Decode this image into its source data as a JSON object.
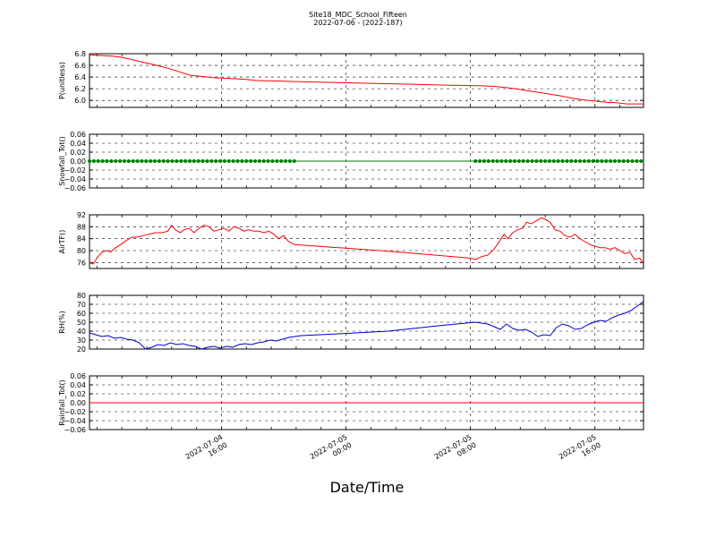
{
  "figure": {
    "title": "Site18_MDC_School_Fifteen",
    "subtitle": "2022-07-06 - (2022-187)",
    "xlabel": "Date/Time",
    "x_ticks": [
      "2022-07-04|16:00",
      "2022-07-05|00:00",
      "2022-07-05|08:00",
      "2022-07-05|16:00"
    ]
  },
  "chart_data": [
    {
      "type": "line",
      "ylabel": "P(unitless)",
      "ylim": [
        5.88,
        6.8
      ],
      "yticks": [
        "6.8",
        "6.6",
        "6.4",
        "6.2",
        "6.0"
      ],
      "ytick_values": [
        6.8,
        6.6,
        6.4,
        6.2,
        6.0
      ],
      "color": "#ff0000",
      "marker": false,
      "grid": true,
      "x_hours": [
        0,
        0.9,
        1.8,
        2.5,
        3.2,
        4.0,
        4.8,
        5.4,
        6.3,
        7.2,
        8.1,
        9.0,
        9.9,
        10.8,
        11.7,
        12.6,
        13.5,
        17.0,
        21.0,
        25.0,
        29.0,
        31.5,
        32.5,
        33.4,
        34.2,
        35.1,
        36.0,
        36.9,
        37.8,
        38.7,
        39.6,
        40.5,
        41.4,
        42.3,
        43.2,
        44.5
      ],
      "y": [
        6.78,
        6.77,
        6.76,
        6.74,
        6.71,
        6.67,
        6.63,
        6.6,
        6.55,
        6.49,
        6.43,
        6.41,
        6.39,
        6.38,
        6.37,
        6.36,
        6.34,
        6.32,
        6.3,
        6.28,
        6.26,
        6.25,
        6.24,
        6.22,
        6.2,
        6.17,
        6.14,
        6.11,
        6.08,
        6.04,
        6.01,
        5.99,
        5.97,
        5.96,
        5.94,
        5.94
      ]
    },
    {
      "type": "line",
      "ylabel": "Snowfall_Tot()",
      "ylim": [
        -0.06,
        0.06
      ],
      "yticks": [
        "0.06",
        "0.04",
        "0.02",
        "0.00",
        "−0.02",
        "−0.04",
        "−0.06"
      ],
      "ytick_values": [
        0.06,
        0.04,
        0.02,
        0.0,
        -0.02,
        -0.04,
        -0.06
      ],
      "color": "#008000",
      "marker": true,
      "marker_x_ranges": [
        [
          0,
          16.5
        ],
        [
          31,
          44.5
        ]
      ],
      "marker_step": 0.35,
      "grid": true,
      "x_hours": [
        0,
        44.5
      ],
      "y": [
        0,
        0
      ]
    },
    {
      "type": "line",
      "ylabel": "AirTF()",
      "ylim": [
        74,
        92
      ],
      "yticks": [
        "92",
        "88",
        "84",
        "80",
        "76"
      ],
      "ytick_values": [
        92,
        88,
        84,
        80,
        76
      ],
      "color": "#ff0000",
      "marker": false,
      "grid": true,
      "x_hours": [
        0,
        0.3,
        0.6,
        1.0,
        1.4,
        1.7,
        2.1,
        2.5,
        3.0,
        3.4,
        3.8,
        4.3,
        4.8,
        5.3,
        5.8,
        6.3,
        6.6,
        6.9,
        7.3,
        7.6,
        8.0,
        8.4,
        8.8,
        9.2,
        9.6,
        10.0,
        10.4,
        10.8,
        11.2,
        11.6,
        12.0,
        12.4,
        12.8,
        13.2,
        13.6,
        14.0,
        14.4,
        14.8,
        15.2,
        15.6,
        16.0,
        16.5,
        20.0,
        25.0,
        30.5,
        31.0,
        31.5,
        32.0,
        32.5,
        33.0,
        33.3,
        33.6,
        34.0,
        34.4,
        34.8,
        35.1,
        35.5,
        35.9,
        36.3,
        36.6,
        37.0,
        37.4,
        37.8,
        38.2,
        38.6,
        39.0,
        39.4,
        39.8,
        40.2,
        40.6,
        41.0,
        41.4,
        41.8,
        42.2,
        42.6,
        43.0,
        43.4,
        43.8,
        44.2,
        44.5
      ],
      "y": [
        76.0,
        75.5,
        77.5,
        79.5,
        80.0,
        79.5,
        81.0,
        82.0,
        83.5,
        84.5,
        84.5,
        85.0,
        85.5,
        86.0,
        86.0,
        86.5,
        88.5,
        87.0,
        86.0,
        87.0,
        87.5,
        86.0,
        87.5,
        88.5,
        88.0,
        86.5,
        87.0,
        87.5,
        86.5,
        88.0,
        87.5,
        86.5,
        87.0,
        86.5,
        86.5,
        86.0,
        86.5,
        85.5,
        84.0,
        85.0,
        83.0,
        82.0,
        81.0,
        79.5,
        77.5,
        77.0,
        78.0,
        78.5,
        80.5,
        83.5,
        85.5,
        84.0,
        86.0,
        87.0,
        87.5,
        89.5,
        89.0,
        90.0,
        91.0,
        90.5,
        89.5,
        87.0,
        86.5,
        85.0,
        84.5,
        85.5,
        84.0,
        83.0,
        82.0,
        81.5,
        81.0,
        81.0,
        80.5,
        81.0,
        80.0,
        79.0,
        79.5,
        77.0,
        77.5,
        75.5
      ]
    },
    {
      "type": "line",
      "ylabel": "RH(%)",
      "ylim": [
        20,
        80
      ],
      "yticks": [
        "80",
        "70",
        "60",
        "50",
        "40",
        "30",
        "20"
      ],
      "ytick_values": [
        80,
        70,
        60,
        50,
        40,
        30,
        20
      ],
      "color": "#0000cc",
      "marker": false,
      "grid": true,
      "x_hours": [
        0,
        0.5,
        1.0,
        1.5,
        2.0,
        2.5,
        3.0,
        3.5,
        4.0,
        4.5,
        5.0,
        5.5,
        6.0,
        6.5,
        7.0,
        7.5,
        8.0,
        8.5,
        9.0,
        9.5,
        10.0,
        10.5,
        11.0,
        11.5,
        12.0,
        12.5,
        13.0,
        13.5,
        14.0,
        14.5,
        15.0,
        15.5,
        16.0,
        16.5,
        17.0,
        20.0,
        24.0,
        28.0,
        31.0,
        32.0,
        33.0,
        33.5,
        34.0,
        34.5,
        35.0,
        35.5,
        36.0,
        36.5,
        37.0,
        37.5,
        38.0,
        38.5,
        39.0,
        39.5,
        40.0,
        40.5,
        41.0,
        41.5,
        42.0,
        42.5,
        43.0,
        43.5,
        44.0,
        44.5
      ],
      "y": [
        38,
        36,
        34,
        35,
        32,
        33,
        31,
        30,
        27,
        20,
        22,
        25,
        24,
        27,
        25,
        26,
        24,
        23,
        20,
        22,
        23,
        21,
        23,
        22,
        25,
        26,
        25,
        27,
        28,
        30,
        29,
        31,
        33,
        34,
        35,
        37,
        40,
        46,
        50,
        48,
        42,
        48,
        43,
        41,
        42,
        39,
        34,
        36,
        35,
        44,
        48,
        46,
        42,
        43,
        47,
        50,
        52,
        51,
        55,
        58,
        60,
        63,
        68,
        73
      ]
    },
    {
      "type": "line",
      "ylabel": "Rainfall_Tot()",
      "ylim": [
        -0.06,
        0.06
      ],
      "yticks": [
        "0.06",
        "0.04",
        "0.02",
        "0.00",
        "−0.02",
        "−0.04",
        "−0.06"
      ],
      "ytick_values": [
        0.06,
        0.04,
        0.02,
        0.0,
        -0.02,
        -0.04,
        -0.06
      ],
      "color": "#ff0000",
      "marker": false,
      "grid": true,
      "x_hours": [
        0,
        44.5
      ],
      "y": [
        0,
        0
      ]
    }
  ]
}
